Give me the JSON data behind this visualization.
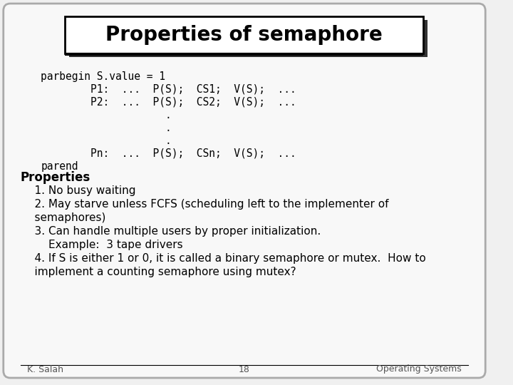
{
  "title": "Properties of semaphore",
  "bg_color": "#f0f0f0",
  "slide_bg": "#e8e8e8",
  "title_bg": "#ffffff",
  "code_lines": [
    "parbegin S.value = 1",
    "        P1:  ...  P(S);  CS1;  V(S);  ...",
    "        P2:  ...  P(S);  CS2;  V(S);  ...",
    "                    .",
    "                    .",
    "                    .",
    "        Pn:  ...  P(S);  CSn;  V(S);  ...",
    "parend"
  ],
  "properties_header": "Properties",
  "properties_lines": [
    "    1. No busy waiting",
    "    2. May starve unless FCFS (scheduling left to the implementer of",
    "    semaphores)",
    "    3. Can handle multiple users by proper initialization.",
    "        Example:  3 tape drivers",
    "    4. If S is either 1 or 0, it is called a binary semaphore or mutex.  How to",
    "    implement a counting semaphore using mutex?"
  ],
  "footer_left": "K. Salah",
  "footer_center": "18",
  "footer_right": "Operating Systems",
  "title_fontsize": 20,
  "code_fontsize": 10.5,
  "body_fontsize": 11,
  "footer_fontsize": 9
}
